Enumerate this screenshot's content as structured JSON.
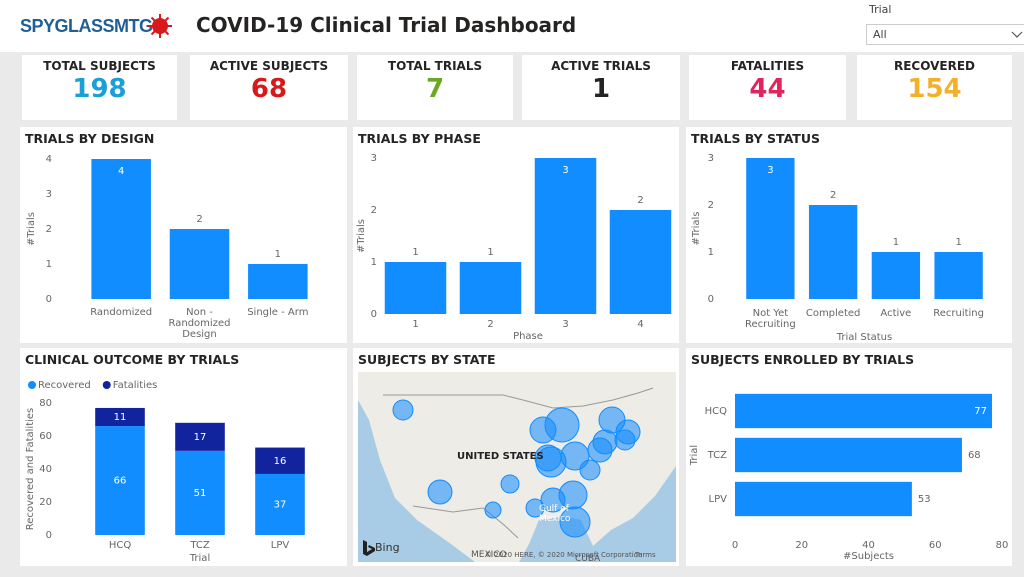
{
  "header": {
    "logo": "SPYGLASSMTG",
    "title": "COVID-19 Clinical Trial Dashboard",
    "slicer": {
      "label": "Trial",
      "value": "All"
    }
  },
  "kpis": [
    {
      "label": "TOTAL SUBJECTS",
      "value": 198,
      "color": "#1a9fd9"
    },
    {
      "label": "ACTIVE SUBJECTS",
      "value": 68,
      "color": "#d7191c"
    },
    {
      "label": "TOTAL TRIALS",
      "value": 7,
      "color": "#6aaa1e"
    },
    {
      "label": "ACTIVE TRIALS",
      "value": 1,
      "color": "#252423"
    },
    {
      "label": "FATALITIES",
      "value": 44,
      "color": "#e0245e"
    },
    {
      "label": "RECOVERED",
      "value": 154,
      "color": "#f4b02a"
    }
  ],
  "chart_data": [
    {
      "type": "bar",
      "title": "TRIALS BY DESIGN",
      "y_label": "#Trials",
      "categories": [
        "Randomized",
        "Non - Randomized Design",
        "Single - Arm"
      ],
      "values": [
        4,
        2,
        1
      ],
      "color": "#118dff",
      "ylim": [
        0,
        4
      ],
      "yticks": [
        0,
        1,
        2,
        3,
        4
      ]
    },
    {
      "type": "bar",
      "title": "TRIALS BY PHASE",
      "y_label": "#Trials",
      "x_label": "Phase",
      "categories": [
        "1",
        "2",
        "3",
        "4"
      ],
      "values": [
        1,
        1,
        3,
        2
      ],
      "color": "#118dff",
      "ylim": [
        0,
        3
      ],
      "yticks": [
        0,
        1,
        2,
        3
      ]
    },
    {
      "type": "bar",
      "title": "TRIALS BY STATUS",
      "y_label": "#Trials",
      "x_label": "Trial Status",
      "categories": [
        "Not Yet Recruiting",
        "Completed",
        "Active",
        "Recruiting"
      ],
      "values": [
        3,
        2,
        1,
        1
      ],
      "color": "#118dff",
      "ylim": [
        0,
        3
      ],
      "yticks": [
        0,
        1,
        2,
        3
      ]
    },
    {
      "type": "stacked_bar",
      "title": "CLINICAL OUTCOME BY TRIALS",
      "y_label": "Recovered and Fatalities",
      "x_label": "Trial",
      "categories": [
        "HCQ",
        "TCZ",
        "LPV"
      ],
      "series": [
        {
          "name": "Recovered",
          "color": "#118dff",
          "values": [
            66,
            51,
            37
          ]
        },
        {
          "name": "Fatalities",
          "color": "#12239e",
          "values": [
            11,
            17,
            16
          ]
        }
      ],
      "ylim": [
        0,
        80
      ],
      "yticks": [
        0,
        20,
        40,
        60,
        80
      ],
      "legend": "top-left"
    },
    {
      "type": "map",
      "title": "SUBJECTS BY STATE",
      "labels": [
        "UNITED STATES",
        "Gulf of Mexico",
        "MEXICO",
        "CUBA"
      ],
      "logo": "Bing",
      "attribution": "© 2020 HERE, © 2020 Microsoft Corporation",
      "terms": "Terms"
    },
    {
      "type": "hbar",
      "title": "SUBJECTS ENROLLED BY TRIALS",
      "y_label": "Trial",
      "x_label": "#Subjects",
      "categories": [
        "HCQ",
        "TCZ",
        "LPV"
      ],
      "values": [
        77,
        68,
        53
      ],
      "color": "#118dff",
      "xlim": [
        0,
        80
      ],
      "xticks": [
        0,
        20,
        40,
        60,
        80
      ]
    }
  ]
}
